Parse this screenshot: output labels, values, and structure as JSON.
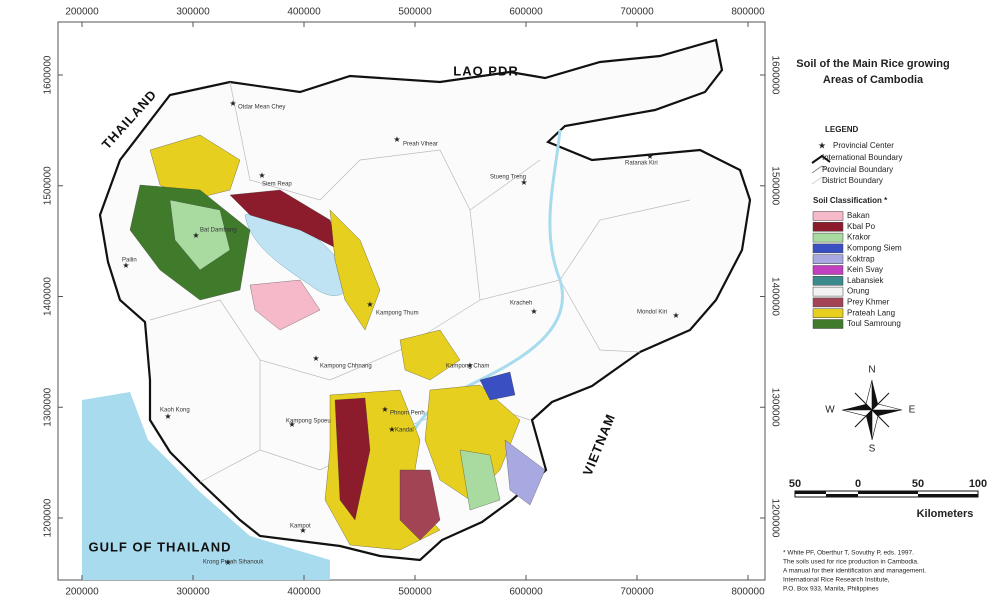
{
  "title": [
    "Soil of the Main Rice growing",
    "Areas of Cambodia"
  ],
  "map": {
    "xticks": [
      200000,
      300000,
      400000,
      500000,
      600000,
      700000,
      800000
    ],
    "yticks": [
      1600000,
      1500000,
      1400000,
      1300000,
      1200000
    ],
    "countries": [
      "LAO PDR",
      "THAILAND",
      "VIETNAM",
      "GULF OF THAILAND"
    ],
    "places": [
      "Otdar Mean Chey",
      "Preah Vihear",
      "Stueng Treng",
      "Ratanak Kiri",
      "Siem Reap",
      "Bat Dambang",
      "Pailin",
      "Kampong Thum",
      "Kracheh",
      "Mondol Kiri",
      "Kampong Chhnang",
      "Kampong Cham",
      "Kaoh Kong",
      "Kampong Spoeu",
      "Phnom Penh",
      "Kandal",
      "Krong Preah Sihanouk",
      "Kampot"
    ]
  },
  "legend": {
    "title": "LEGEND",
    "items": [
      "Provincial Center",
      "International Boundary",
      "Provincial Boundary",
      "District Boundary"
    ]
  },
  "soil": {
    "title": "Soil Classification *",
    "classes": [
      {
        "name": "Bakan",
        "color": "#f6b9c9"
      },
      {
        "name": "Kbal Po",
        "color": "#8c1b2c"
      },
      {
        "name": "Krakor",
        "color": "#a9dba0"
      },
      {
        "name": "Kompong Siem",
        "color": "#3a4fc2"
      },
      {
        "name": "Koktrap",
        "color": "#a9a9e2"
      },
      {
        "name": "Kein Svay",
        "color": "#c23fc0"
      },
      {
        "name": "Labansiek",
        "color": "#3b8a8c"
      },
      {
        "name": "Orung",
        "color": "#f2f2f2"
      },
      {
        "name": "Prey Khmer",
        "color": "#a34455"
      },
      {
        "name": "Prateah Lang",
        "color": "#e6cf1e"
      },
      {
        "name": "Toul Samroung",
        "color": "#3f7b2b"
      }
    ]
  },
  "compass": [
    "N",
    "S",
    "W",
    "E"
  ],
  "scale": {
    "labels": [
      50,
      0,
      50,
      100
    ],
    "unit": "Kilometers"
  },
  "citation": [
    "* White PF, Oberthur T, Sovuthy P, eds. 1997.",
    "The soils used for rice production in Cambodia.",
    "A manual for their identification and management.",
    "International Rice Research Institute,",
    "P.O. Box 933, Manila, Philippines"
  ]
}
